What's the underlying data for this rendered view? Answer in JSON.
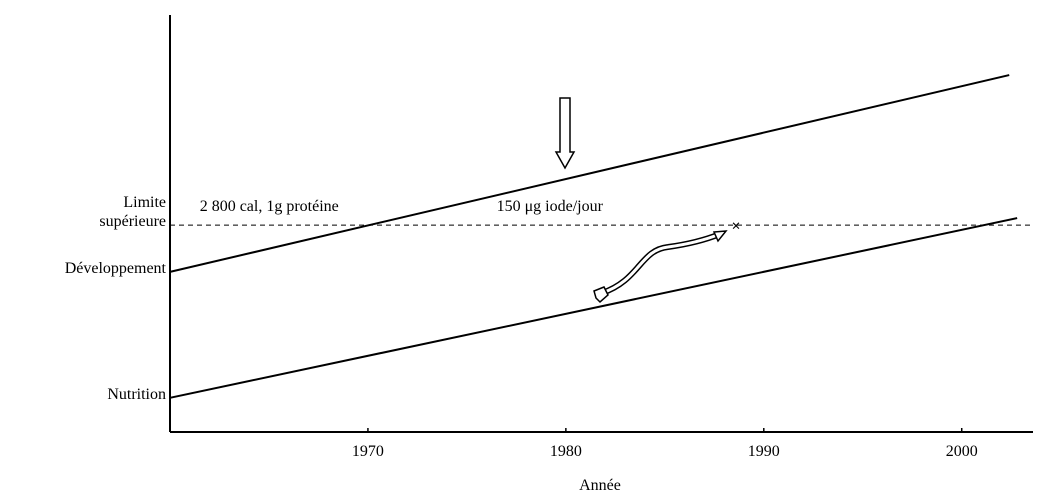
{
  "chart_data": {
    "type": "line",
    "xlabel": "Année",
    "xlim": [
      1960,
      2003.5
    ],
    "xticks": [
      1970,
      1980,
      1990,
      2000
    ],
    "ylim": [
      0,
      100
    ],
    "yticks": [
      {
        "value": 8.2,
        "label": "Nutrition"
      },
      {
        "value": 38.4,
        "label": "Développement"
      },
      {
        "value": 49.6,
        "label": "Limite\nsupérieure"
      }
    ],
    "series": [
      {
        "color": "#000000",
        "x": [
          1960,
          2002.4
        ],
        "values": [
          38.4,
          85.6
        ]
      },
      {
        "color": "#000000",
        "x": [
          1960,
          2002.8
        ],
        "values": [
          8.2,
          51.3
        ]
      },
      {
        "color": "#000000",
        "dashed": true,
        "x": [
          1960,
          2003.5
        ],
        "values": [
          49.6,
          49.6
        ]
      }
    ],
    "marker": {
      "x": 1988.6,
      "y": 49.6,
      "label": "×"
    },
    "annotations": [
      {
        "text": "2 800 cal, 1g protéine",
        "x": 1961.5,
        "y": 53
      },
      {
        "text": "150 μg iode/jour",
        "x": 1976.5,
        "y": 53
      }
    ]
  }
}
